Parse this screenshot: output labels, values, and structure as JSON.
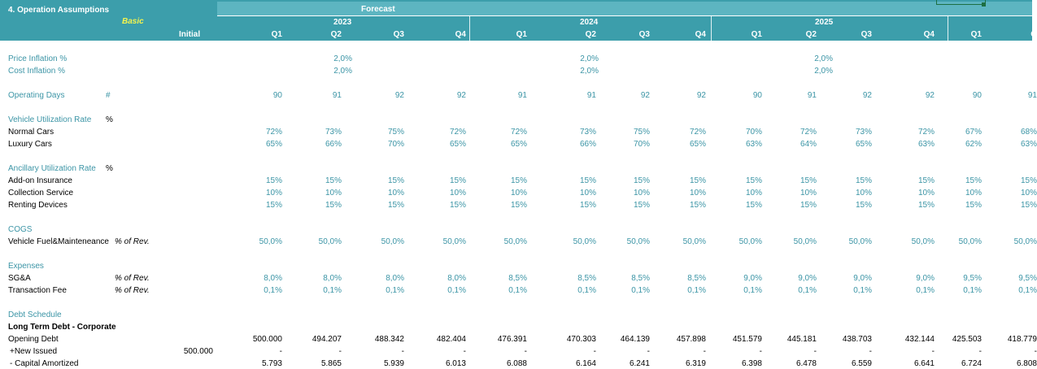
{
  "header": {
    "section_title": "4. Operation Assumptions",
    "scenario": "Basic",
    "forecast": "Forecast",
    "initial": "Initial",
    "years": [
      "2023",
      "2024",
      "2025"
    ],
    "quarters": [
      "Q1",
      "Q2",
      "Q3",
      "Q4",
      "Q1",
      "Q2",
      "Q3",
      "Q4",
      "Q1",
      "Q2",
      "Q3",
      "Q4",
      "Q1",
      "Q"
    ]
  },
  "rows": {
    "price_inflation": {
      "label": "Price Inflation %",
      "values": [
        "2,0%",
        "2,0%",
        "2,0%"
      ]
    },
    "cost_inflation": {
      "label": "Cost Inflation %",
      "values": [
        "2,0%",
        "2,0%",
        "2,0%"
      ]
    },
    "operating_days": {
      "label": "Operating Days",
      "unit": "#",
      "values": [
        "90",
        "91",
        "92",
        "92",
        "91",
        "91",
        "92",
        "92",
        "90",
        "91",
        "92",
        "92",
        "90",
        "91"
      ]
    },
    "vehicle_util": {
      "label": "Vehicle Utilization Rate",
      "unit": "%",
      "normal": {
        "label": "Normal Cars",
        "values": [
          "72%",
          "73%",
          "75%",
          "72%",
          "72%",
          "73%",
          "75%",
          "72%",
          "70%",
          "72%",
          "73%",
          "72%",
          "67%",
          "68%"
        ]
      },
      "luxury": {
        "label": "Luxury Cars",
        "values": [
          "65%",
          "66%",
          "70%",
          "65%",
          "65%",
          "66%",
          "70%",
          "65%",
          "63%",
          "64%",
          "65%",
          "63%",
          "62%",
          "63%"
        ]
      }
    },
    "ancillary_util": {
      "label": "Ancillary Utilization Rate",
      "unit": "%",
      "addon": {
        "label": "Add-on Insurance",
        "values": [
          "15%",
          "15%",
          "15%",
          "15%",
          "15%",
          "15%",
          "15%",
          "15%",
          "15%",
          "15%",
          "15%",
          "15%",
          "15%",
          "15%"
        ]
      },
      "collection": {
        "label": "Collection Service",
        "values": [
          "10%",
          "10%",
          "10%",
          "10%",
          "10%",
          "10%",
          "10%",
          "10%",
          "10%",
          "10%",
          "10%",
          "10%",
          "10%",
          "10%"
        ]
      },
      "renting": {
        "label": "Renting Devices",
        "values": [
          "15%",
          "15%",
          "15%",
          "15%",
          "15%",
          "15%",
          "15%",
          "15%",
          "15%",
          "15%",
          "15%",
          "15%",
          "15%",
          "15%"
        ]
      }
    },
    "cogs": {
      "label": "COGS",
      "fuel": {
        "label": "Vehicle Fuel&Mainteneance",
        "unit": "% of Rev.",
        "values": [
          "50,0%",
          "50,0%",
          "50,0%",
          "50,0%",
          "50,0%",
          "50,0%",
          "50,0%",
          "50,0%",
          "50,0%",
          "50,0%",
          "50,0%",
          "50,0%",
          "50,0%",
          "50,0%"
        ]
      }
    },
    "expenses": {
      "label": "Expenses",
      "sga": {
        "label": "SG&A",
        "unit": "% of Rev.",
        "values": [
          "8,0%",
          "8,0%",
          "8,0%",
          "8,0%",
          "8,5%",
          "8,5%",
          "8,5%",
          "8,5%",
          "9,0%",
          "9,0%",
          "9,0%",
          "9,0%",
          "9,5%",
          "9,5%"
        ]
      },
      "txfee": {
        "label": "Transaction Fee",
        "unit": "% of Rev.",
        "values": [
          "0,1%",
          "0,1%",
          "0,1%",
          "0,1%",
          "0,1%",
          "0,1%",
          "0,1%",
          "0,1%",
          "0,1%",
          "0,1%",
          "0,1%",
          "0,1%",
          "0,1%",
          "0,1%"
        ]
      }
    },
    "debt": {
      "label": "Debt Schedule",
      "ltd": "Long Term Debt - Corporate",
      "opening": {
        "label": "Opening Debt",
        "values": [
          "500.000",
          "494.207",
          "488.342",
          "482.404",
          "476.391",
          "470.303",
          "464.139",
          "457.898",
          "451.579",
          "445.181",
          "438.703",
          "432.144",
          "425.503",
          "418.779"
        ]
      },
      "new_issued": {
        "label": "+New Issued",
        "initial": "500.000",
        "values": [
          "-",
          "-",
          "-",
          "-",
          "-",
          "-",
          "-",
          "-",
          "-",
          "-",
          "-",
          "-",
          "-",
          "-"
        ]
      },
      "capital": {
        "label": "- Capital Amortized",
        "values": [
          "5.793",
          "5.865",
          "5.939",
          "6.013",
          "6.088",
          "6.164",
          "6.241",
          "6.319",
          "6.398",
          "6.478",
          "6.559",
          "6.641",
          "6.724",
          "6.808"
        ]
      }
    }
  },
  "colors": {
    "header_bg": "#3c9eab",
    "header_band": "#5db5c1",
    "input_text": "#3c95a6",
    "scenario_text": "#f3f34e"
  }
}
